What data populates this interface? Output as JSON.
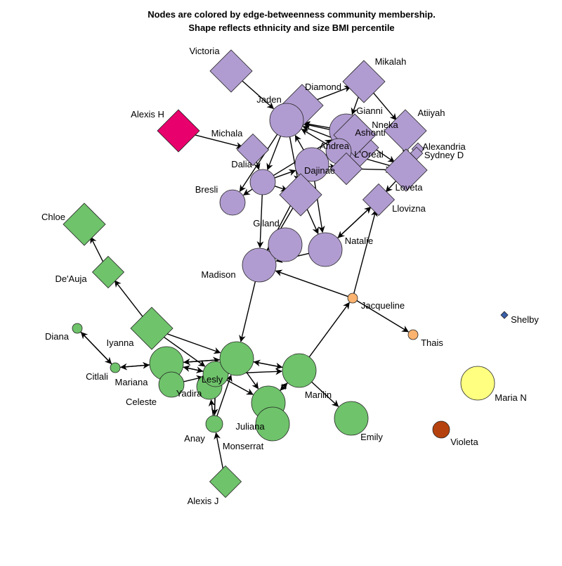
{
  "title": {
    "line1": "Nodes are colored by edge-betweenness community membership.",
    "line2": "Shape reflects ethnicity and size BMI percentile"
  },
  "colors": {
    "purple": "#b19cd1",
    "green": "#6fc36b",
    "magenta": "#e8006c",
    "orange": "#fbb36f",
    "yellow": "#ffff80",
    "brown": "#b5420e",
    "navy": "#3a5fa8"
  },
  "nodes": [
    {
      "id": "Victoria",
      "label": "Victoria",
      "shape": "diamond",
      "color": "purple",
      "size": "lg"
    },
    {
      "id": "Mikalah",
      "label": "Mikalah",
      "shape": "diamond",
      "color": "purple",
      "size": "lg"
    },
    {
      "id": "Diamond",
      "label": "Diamond",
      "shape": "diamond",
      "color": "purple",
      "size": "lg"
    },
    {
      "id": "Jaden",
      "label": "Jaden",
      "shape": "circle",
      "color": "purple",
      "size": "lg"
    },
    {
      "id": "Gianni",
      "label": "Gianni",
      "shape": "circle",
      "color": "purple",
      "size": "lg"
    },
    {
      "id": "Atiiyah",
      "label": "Atiiyah",
      "shape": "diamond",
      "color": "purple",
      "size": "lg"
    },
    {
      "id": "Nneka",
      "label": "Nneka",
      "shape": "diamond",
      "color": "purple",
      "size": "lg"
    },
    {
      "id": "Ashonti",
      "label": "Ashonti",
      "shape": "diamond",
      "color": "purple",
      "size": "lg"
    },
    {
      "id": "Alexandria",
      "label": "Alexandria",
      "shape": "diamond",
      "color": "purple",
      "size": "xs"
    },
    {
      "id": "Sydney D",
      "label": "Sydney D",
      "shape": "diamond",
      "color": "purple",
      "size": "xs"
    },
    {
      "id": "Alexis H",
      "label": "Alexis H",
      "shape": "diamond",
      "color": "magenta",
      "size": "lg"
    },
    {
      "id": "Michala",
      "label": "Michala",
      "shape": "diamond",
      "color": "purple",
      "size": "md"
    },
    {
      "id": "Andrea",
      "label": "Andrea",
      "shape": "circle",
      "color": "purple",
      "size": "md"
    },
    {
      "id": "L'Oreal",
      "label": "L'Oreal",
      "shape": "diamond",
      "color": "purple",
      "size": "md"
    },
    {
      "id": "Dalia",
      "label": "Dalia",
      "shape": "circle",
      "color": "purple",
      "size": "md"
    },
    {
      "id": "Dajinae",
      "label": "Dajinae",
      "shape": "circle",
      "color": "purple",
      "size": "lg"
    },
    {
      "id": "Loveta",
      "label": "Loveta",
      "shape": "diamond",
      "color": "purple",
      "size": "lg"
    },
    {
      "id": "Bresli",
      "label": "Bresli",
      "shape": "circle",
      "color": "purple",
      "size": "md"
    },
    {
      "id": "Giland",
      "label": "Giland",
      "shape": "diamond",
      "color": "purple",
      "size": "lg"
    },
    {
      "id": "Llovizna",
      "label": "Llovizna",
      "shape": "diamond",
      "color": "purple",
      "size": "md"
    },
    {
      "id": "Natalie",
      "label": "Natalie",
      "shape": "circle",
      "color": "purple",
      "size": "lg"
    },
    {
      "id": "Madison",
      "label": "Madison",
      "shape": "circle",
      "color": "purple",
      "size": "lg"
    },
    {
      "id": "Chloe",
      "label": "Chloe",
      "shape": "diamond",
      "color": "green",
      "size": "lg"
    },
    {
      "id": "De'Auja",
      "label": "De'Auja",
      "shape": "diamond",
      "color": "green",
      "size": "md"
    },
    {
      "id": "Iyanna",
      "label": "Iyanna",
      "shape": "diamond",
      "color": "green",
      "size": "lg"
    },
    {
      "id": "Diana",
      "label": "Diana",
      "shape": "circle",
      "color": "green",
      "size": "xs"
    },
    {
      "id": "Citlali",
      "label": "Citlali",
      "shape": "circle",
      "color": "green",
      "size": "xs"
    },
    {
      "id": "Mariana",
      "label": "Mariana",
      "shape": "circle",
      "color": "green",
      "size": "lg"
    },
    {
      "id": "Celeste",
      "label": "Celeste",
      "shape": "circle",
      "color": "green",
      "size": "md"
    },
    {
      "id": "Yadira",
      "label": "Yadira",
      "shape": "circle",
      "color": "green",
      "size": "md"
    },
    {
      "id": "Lesly",
      "label": "Lesly",
      "shape": "circle",
      "color": "green",
      "size": "md"
    },
    {
      "id": "Juliana",
      "label": "Juliana",
      "shape": "circle",
      "color": "green",
      "size": "lg"
    },
    {
      "id": "Marilin",
      "label": "Marilin",
      "shape": "circle",
      "color": "green",
      "size": "lg"
    },
    {
      "id": "Monserrat",
      "label": "Monserrat",
      "shape": "circle",
      "color": "green",
      "size": "lg"
    },
    {
      "id": "Anay",
      "label": "Anay",
      "shape": "circle",
      "color": "green",
      "size": "sm"
    },
    {
      "id": "Emily",
      "label": "Emily",
      "shape": "circle",
      "color": "green",
      "size": "lg"
    },
    {
      "id": "Alexis J",
      "label": "Alexis J",
      "shape": "diamond",
      "color": "green",
      "size": "md"
    },
    {
      "id": "Jacqueline",
      "label": "Jacqueline",
      "shape": "circle",
      "color": "orange",
      "size": "xs"
    },
    {
      "id": "Thais",
      "label": "Thais",
      "shape": "circle",
      "color": "orange",
      "size": "xs"
    },
    {
      "id": "Shelby",
      "label": "Shelby",
      "shape": "diamond",
      "color": "navy",
      "size": "xxs"
    },
    {
      "id": "Maria N",
      "label": "Maria N",
      "shape": "circle",
      "color": "yellow",
      "size": "lg"
    },
    {
      "id": "Violeta",
      "label": "Violeta",
      "shape": "circle",
      "color": "brown",
      "size": "sm"
    }
  ],
  "edges": [
    [
      "Victoria",
      "Jaden"
    ],
    [
      "Alexis H",
      "Michala"
    ],
    [
      "Michala",
      "Dalia"
    ],
    [
      "Jaden",
      "Diamond"
    ],
    [
      "Diamond",
      "Mikalah"
    ],
    [
      "Mikalah",
      "Gianni"
    ],
    [
      "Mikalah",
      "Atiiyah"
    ],
    [
      "Gianni",
      "Jaden"
    ],
    [
      "Nneka",
      "Jaden"
    ],
    [
      "Ashonti",
      "Jaden"
    ],
    [
      "Andrea",
      "Jaden"
    ],
    [
      "Jaden",
      "Dalia"
    ],
    [
      "Jaden",
      "Bresli"
    ],
    [
      "Dalia",
      "Bresli"
    ],
    [
      "Dalia",
      "Giland"
    ],
    [
      "Dalia",
      "Dajinae"
    ],
    [
      "Dalia",
      "Madison"
    ],
    [
      "Jaden",
      "Giland"
    ],
    [
      "Dajinae",
      "Jaden"
    ],
    [
      "Giland",
      "Madison"
    ],
    [
      "Giland",
      "Natalie"
    ],
    [
      "Giland",
      "Dajinae"
    ],
    [
      "Natalie",
      "Llovizna"
    ],
    [
      "Llovizna",
      "Natalie"
    ],
    [
      "Loveta",
      "Llovizna"
    ],
    [
      "Loveta",
      "Andrea"
    ],
    [
      "L'Oreal",
      "Loveta"
    ],
    [
      "Ashonti",
      "Loveta"
    ],
    [
      "Atiiyah",
      "Loveta"
    ],
    [
      "Sydney D",
      "Loveta"
    ],
    [
      "Dajinae",
      "Andrea"
    ],
    [
      "Dajinae",
      "L'Oreal"
    ],
    [
      "Dajinae",
      "Natalie"
    ],
    [
      "Dajinae",
      "Ashonti"
    ],
    [
      "Dalia",
      "Gianni"
    ],
    [
      "Andrea",
      "Gianni"
    ],
    [
      "Natalie",
      "Madison"
    ],
    [
      "Madison",
      "Dajinae"
    ],
    [
      "Jacqueline",
      "Madison"
    ],
    [
      "Jacqueline",
      "Llovizna"
    ],
    [
      "Jacqueline",
      "Thais"
    ],
    [
      "Marilin",
      "Jacqueline"
    ],
    [
      "Madison",
      "Monserrat"
    ],
    [
      "Iyanna",
      "De'Auja"
    ],
    [
      "De'Auja",
      "Chloe"
    ],
    [
      "Iyanna",
      "Lesly"
    ],
    [
      "Iyanna",
      "Monserrat"
    ],
    [
      "Diana",
      "Citlali"
    ],
    [
      "Citlali",
      "Diana"
    ],
    [
      "Citlali",
      "Mariana"
    ],
    [
      "Mariana",
      "Citlali"
    ],
    [
      "Mariana",
      "Monserrat"
    ],
    [
      "Monserrat",
      "Mariana"
    ],
    [
      "Lesly",
      "Mariana"
    ],
    [
      "Mariana",
      "Lesly"
    ],
    [
      "Lesly",
      "Yadira"
    ],
    [
      "Anay",
      "Lesly"
    ],
    [
      "Lesly",
      "Anay"
    ],
    [
      "Anay",
      "Yadira"
    ],
    [
      "Monserrat",
      "Marilin"
    ],
    [
      "Marilin",
      "Monserrat"
    ],
    [
      "Lesly",
      "Marilin"
    ],
    [
      "Marilin",
      "Juliana"
    ],
    [
      "Juliana",
      "Marilin"
    ],
    [
      "Monserrat",
      "Juliana"
    ],
    [
      "Lesly",
      "Juliana"
    ],
    [
      "Marilin",
      "Emily"
    ],
    [
      "Anay",
      "Monserrat"
    ],
    [
      "Alexis J",
      "Anay"
    ],
    [
      "Celeste",
      "Lesly"
    ]
  ]
}
